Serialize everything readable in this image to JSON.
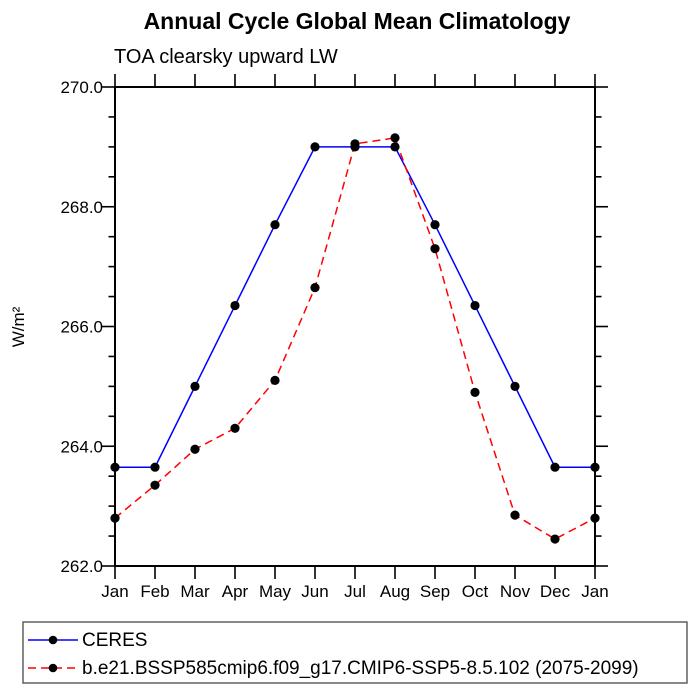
{
  "chart_data": {
    "type": "line",
    "title": "Annual Cycle Global Mean Climatology",
    "subtitle": "TOA clearsky upward LW",
    "ylabel": "W/m²",
    "xlabel": "",
    "categories": [
      "Jan",
      "Feb",
      "Mar",
      "Apr",
      "May",
      "Jun",
      "Jul",
      "Aug",
      "Sep",
      "Oct",
      "Nov",
      "Dec",
      "Jan"
    ],
    "ylim": [
      262.0,
      270.0
    ],
    "ytick_values": [
      262,
      264,
      266,
      268,
      270
    ],
    "ytick_labels": [
      "262.0",
      "264.0",
      "266.0",
      "268.0",
      "270.0"
    ],
    "ytick_minor_step": 0.5,
    "grid": false,
    "legend_position": "bottom-box",
    "axis_color": "#000000",
    "marker_shape": "filled-circle",
    "series": [
      {
        "name": "CERES",
        "color": "#0000ff",
        "line_style": "solid",
        "marker": "filled-circle",
        "marker_color": "#000000",
        "values": [
          263.65,
          263.65,
          265.0,
          266.35,
          267.7,
          269.0,
          269.0,
          269.0,
          267.7,
          266.35,
          265.0,
          263.65,
          263.65
        ]
      },
      {
        "name": "b.e21.BSSP585cmip6.f09_g17.CMIP6-SSP5-8.5.102 (2075-2099)",
        "color": "#ff0000",
        "line_style": "dashed",
        "marker": "filled-circle",
        "marker_color": "#000000",
        "values": [
          262.8,
          263.35,
          263.95,
          264.3,
          265.1,
          266.65,
          269.05,
          269.15,
          267.3,
          264.9,
          262.85,
          262.45,
          262.8
        ]
      }
    ]
  }
}
